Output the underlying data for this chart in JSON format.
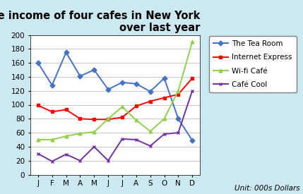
{
  "title": "the income of four cafes in New York\nover last year",
  "months": [
    "J",
    "F",
    "M",
    "A",
    "M",
    "J",
    "J",
    "A",
    "S",
    "O",
    "N",
    "D"
  ],
  "series_order": [
    "The Tea Room",
    "Internet Express",
    "Wi-fi Café",
    "Café Cool"
  ],
  "series": {
    "The Tea Room": [
      160,
      128,
      175,
      141,
      150,
      122,
      132,
      130,
      119,
      138,
      80,
      49
    ],
    "Internet Express": [
      99,
      90,
      93,
      80,
      79,
      79,
      82,
      98,
      105,
      110,
      115,
      138
    ],
    "Wi-fi Café": [
      50,
      50,
      55,
      59,
      61,
      80,
      97,
      78,
      62,
      80,
      120,
      190
    ],
    "Café Cool": [
      30,
      19,
      29,
      20,
      40,
      20,
      51,
      50,
      41,
      58,
      60,
      120
    ]
  },
  "colors": {
    "The Tea Room": "#4472C4",
    "Internet Express": "#FF0000",
    "Wi-fi Café": "#92D050",
    "Café Cool": "#7030A0"
  },
  "markers": {
    "The Tea Room": "D",
    "Internet Express": "s",
    "Wi-fi Café": "^",
    "Café Cool": "x"
  },
  "ylim": [
    0,
    200
  ],
  "yticks": [
    0,
    20,
    40,
    60,
    80,
    100,
    120,
    140,
    160,
    180,
    200
  ],
  "unit_label": "Unit: 000s Dollars",
  "background_color": "#cce8f0",
  "plot_bg_color": "#ffffff",
  "title_fontsize": 10.5,
  "legend_fontsize": 7.5,
  "tick_fontsize": 7.5
}
